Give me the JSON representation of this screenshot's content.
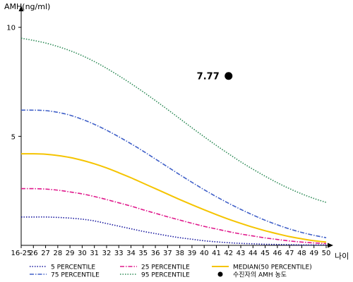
{
  "chart_data": {
    "type": "line",
    "ylabel": "AMH(ng/ml)",
    "xlabel": "나이",
    "ylim": [
      0,
      10.8
    ],
    "yticks": [
      10,
      5
    ],
    "categories": [
      "16-25",
      "26",
      "27",
      "28",
      "29",
      "30",
      "31",
      "32",
      "33",
      "34",
      "35",
      "36",
      "37",
      "38",
      "39",
      "40",
      "41",
      "42",
      "43",
      "44",
      "45",
      "46",
      "47",
      "48",
      "49",
      "50"
    ],
    "grid": false,
    "legend_position": "bottom",
    "series": [
      {
        "name": "5 PERCENTILE",
        "color": "#1a1aa0",
        "style": "dotted",
        "values": [
          1.3,
          1.3,
          1.3,
          1.28,
          1.25,
          1.2,
          1.12,
          1.0,
          0.88,
          0.76,
          0.64,
          0.54,
          0.44,
          0.35,
          0.28,
          0.21,
          0.16,
          0.12,
          0.09,
          0.07,
          0.05,
          0.04,
          0.03,
          0.02,
          0.02,
          0.02
        ]
      },
      {
        "name": "25 PERCENTILE",
        "color": "#e0198c",
        "style": "dashdot",
        "values": [
          2.6,
          2.6,
          2.58,
          2.53,
          2.45,
          2.36,
          2.24,
          2.1,
          1.95,
          1.8,
          1.63,
          1.47,
          1.31,
          1.16,
          1.01,
          0.87,
          0.75,
          0.63,
          0.52,
          0.43,
          0.34,
          0.27,
          0.2,
          0.15,
          0.11,
          0.08
        ]
      },
      {
        "name": "MEDIAN(50 PERCENTILE)",
        "color": "#f5c400",
        "style": "solid",
        "values": [
          4.2,
          4.2,
          4.18,
          4.12,
          4.03,
          3.9,
          3.74,
          3.55,
          3.33,
          3.1,
          2.85,
          2.6,
          2.35,
          2.1,
          1.86,
          1.63,
          1.41,
          1.2,
          1.01,
          0.83,
          0.67,
          0.53,
          0.4,
          0.3,
          0.21,
          0.15
        ]
      },
      {
        "name": "75 PERCENTILE",
        "color": "#4060c8",
        "style": "dashdot",
        "values": [
          6.2,
          6.2,
          6.18,
          6.1,
          5.97,
          5.78,
          5.55,
          5.28,
          4.98,
          4.66,
          4.32,
          3.96,
          3.6,
          3.24,
          2.89,
          2.55,
          2.23,
          1.93,
          1.65,
          1.39,
          1.15,
          0.94,
          0.75,
          0.59,
          0.46,
          0.35
        ]
      },
      {
        "name": "95 PERCENTILE",
        "color": "#2e8b57",
        "style": "dotted",
        "values": [
          9.5,
          9.4,
          9.28,
          9.12,
          8.93,
          8.7,
          8.43,
          8.12,
          7.78,
          7.42,
          7.04,
          6.64,
          6.23,
          5.81,
          5.39,
          4.98,
          4.58,
          4.2,
          3.83,
          3.49,
          3.17,
          2.87,
          2.6,
          2.36,
          2.15,
          1.97
        ]
      }
    ],
    "marker": {
      "name": "수진자의 AMH 농도",
      "x": "42",
      "y": 7.77,
      "label": "7.77",
      "color": "#000000"
    }
  }
}
